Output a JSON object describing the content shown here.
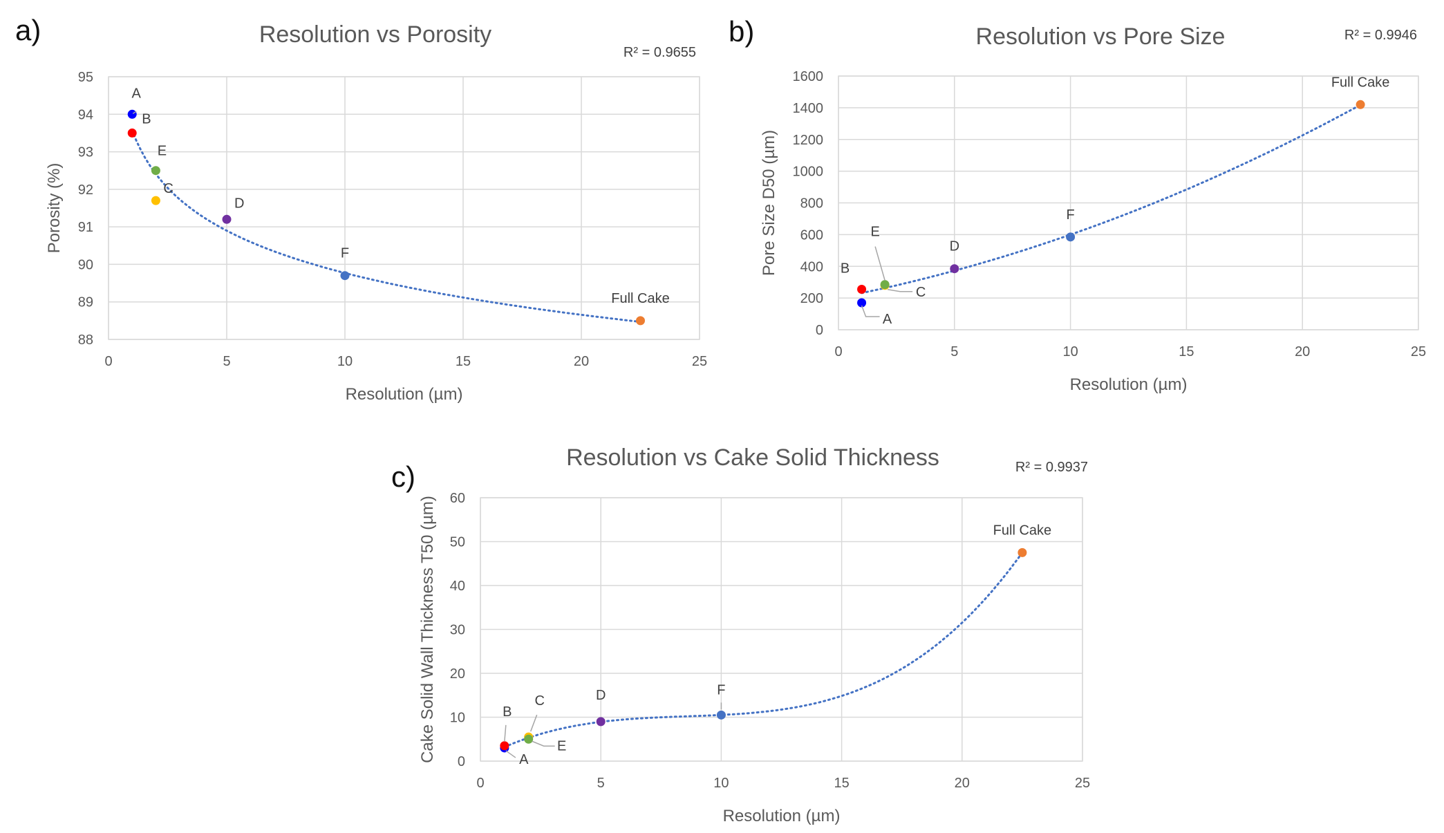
{
  "chart_data": [
    {
      "type": "scatter",
      "panel": "a)",
      "title": "Resolution vs Porosity",
      "annotation": "R² = 0.9655",
      "xlabel": "Resolution (µm)",
      "ylabel": "Porosity (%)",
      "xlim": [
        0,
        25
      ],
      "ylim": [
        88,
        95
      ],
      "xticks": [
        0,
        5,
        10,
        15,
        20,
        25
      ],
      "yticks": [
        88,
        89,
        90,
        91,
        92,
        93,
        94,
        95
      ],
      "grid": true,
      "trendline": "power, dotted",
      "points": [
        {
          "label": "A",
          "x": 1,
          "y": 94.0,
          "color": "#0000ff"
        },
        {
          "label": "B",
          "x": 1,
          "y": 93.5,
          "color": "#ff0000"
        },
        {
          "label": "E",
          "x": 2,
          "y": 92.5,
          "color": "#70ad47"
        },
        {
          "label": "C",
          "x": 2,
          "y": 91.7,
          "color": "#ffc000"
        },
        {
          "label": "D",
          "x": 5,
          "y": 91.2,
          "color": "#7030a0"
        },
        {
          "label": "F",
          "x": 10,
          "y": 89.7,
          "color": "#4472c4"
        },
        {
          "label": "Full Cake",
          "x": 22.5,
          "y": 88.5,
          "color": "#ed7d31"
        }
      ]
    },
    {
      "type": "scatter",
      "panel": "b)",
      "title": "Resolution vs Pore Size",
      "annotation": "R² = 0.9946",
      "xlabel": "Resolution (µm)",
      "ylabel": "Pore Size D50 (µm)",
      "xlim": [
        0,
        25
      ],
      "ylim": [
        0,
        1600
      ],
      "xticks": [
        0,
        5,
        10,
        15,
        20,
        25
      ],
      "yticks": [
        0,
        200,
        400,
        600,
        800,
        1000,
        1200,
        1400,
        1600
      ],
      "grid": true,
      "trendline": "quadratic, dotted",
      "points": [
        {
          "label": "B",
          "x": 1,
          "y": 255,
          "color": "#ff0000"
        },
        {
          "label": "A",
          "x": 1,
          "y": 170,
          "color": "#0000ff"
        },
        {
          "label": "C",
          "x": 2,
          "y": 280,
          "color": "#ffc000"
        },
        {
          "label": "E",
          "x": 2,
          "y": 285,
          "color": "#70ad47"
        },
        {
          "label": "D",
          "x": 5,
          "y": 385,
          "color": "#7030a0"
        },
        {
          "label": "F",
          "x": 10,
          "y": 585,
          "color": "#4472c4"
        },
        {
          "label": "Full Cake",
          "x": 22.5,
          "y": 1420,
          "color": "#ed7d31"
        }
      ]
    },
    {
      "type": "scatter",
      "panel": "c)",
      "title": "Resolution vs Cake Solid Thickness",
      "annotation": "R² = 0.9937",
      "xlabel": "Resolution (µm)",
      "ylabel": "Cake Solid Wall Thickness T50 (µm)",
      "xlim": [
        0,
        25
      ],
      "ylim": [
        0,
        60
      ],
      "xticks": [
        0,
        5,
        10,
        15,
        20,
        25
      ],
      "yticks": [
        0,
        10,
        20,
        30,
        40,
        50,
        60
      ],
      "grid": true,
      "trendline": "cubic, dotted",
      "points": [
        {
          "label": "A",
          "x": 1,
          "y": 3.0,
          "color": "#0000ff"
        },
        {
          "label": "B",
          "x": 1,
          "y": 3.5,
          "color": "#ff0000"
        },
        {
          "label": "C",
          "x": 2,
          "y": 5.5,
          "color": "#ffc000"
        },
        {
          "label": "E",
          "x": 2,
          "y": 5.0,
          "color": "#70ad47"
        },
        {
          "label": "D",
          "x": 5,
          "y": 9.0,
          "color": "#7030a0"
        },
        {
          "label": "F",
          "x": 10,
          "y": 10.5,
          "color": "#4472c4"
        },
        {
          "label": "Full Cake",
          "x": 22.5,
          "y": 47.5,
          "color": "#ed7d31"
        }
      ]
    }
  ]
}
